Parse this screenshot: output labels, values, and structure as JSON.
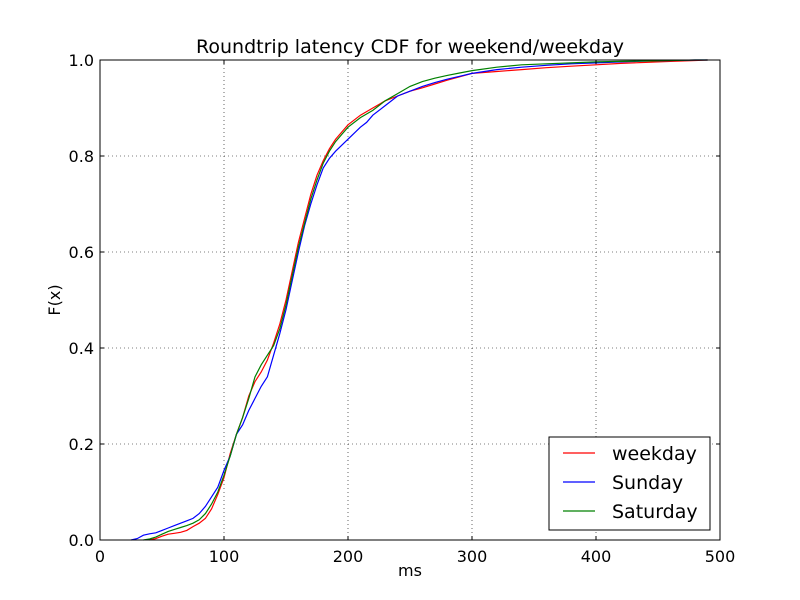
{
  "chart_data": {
    "type": "line",
    "title": "Roundtrip latency CDF for weekend/weekday",
    "xlabel": "ms",
    "ylabel": "F(x)",
    "xlim": [
      0,
      500
    ],
    "ylim": [
      0.0,
      1.0
    ],
    "x_ticks": [
      "0",
      "100",
      "200",
      "300",
      "400",
      "500"
    ],
    "y_ticks": [
      "0.0",
      "0.2",
      "0.4",
      "0.6",
      "0.8",
      "1.0"
    ],
    "grid": true,
    "legend_position": "lower-right",
    "series": [
      {
        "name": "weekday",
        "color": "#ff0000",
        "x": [
          40,
          45,
          50,
          55,
          60,
          65,
          70,
          75,
          80,
          85,
          90,
          95,
          100,
          105,
          110,
          115,
          120,
          125,
          130,
          135,
          140,
          145,
          150,
          155,
          160,
          165,
          170,
          175,
          180,
          185,
          190,
          195,
          200,
          210,
          220,
          230,
          240,
          250,
          260,
          270,
          280,
          290,
          300,
          320,
          340,
          360,
          380,
          400,
          420,
          440,
          460,
          480,
          490
        ],
        "y": [
          0.0,
          0.003,
          0.008,
          0.012,
          0.014,
          0.016,
          0.02,
          0.028,
          0.035,
          0.045,
          0.065,
          0.095,
          0.13,
          0.18,
          0.22,
          0.255,
          0.3,
          0.33,
          0.35,
          0.375,
          0.41,
          0.45,
          0.5,
          0.56,
          0.62,
          0.67,
          0.72,
          0.76,
          0.79,
          0.815,
          0.835,
          0.85,
          0.865,
          0.885,
          0.9,
          0.915,
          0.925,
          0.935,
          0.942,
          0.95,
          0.958,
          0.965,
          0.972,
          0.976,
          0.98,
          0.984,
          0.987,
          0.99,
          0.993,
          0.995,
          0.997,
          0.999,
          1.0
        ]
      },
      {
        "name": "Sunday",
        "color": "#0000ff",
        "x": [
          25,
          30,
          35,
          40,
          45,
          50,
          55,
          60,
          65,
          70,
          75,
          80,
          85,
          90,
          95,
          100,
          105,
          110,
          115,
          120,
          125,
          130,
          135,
          140,
          145,
          150,
          155,
          160,
          165,
          170,
          175,
          180,
          185,
          190,
          200,
          210,
          215,
          220,
          230,
          240,
          250,
          260,
          270,
          280,
          290,
          300,
          320,
          340,
          360,
          380,
          400,
          420,
          440,
          460,
          480,
          490
        ],
        "y": [
          0.0,
          0.003,
          0.01,
          0.013,
          0.015,
          0.02,
          0.025,
          0.03,
          0.035,
          0.04,
          0.045,
          0.055,
          0.07,
          0.09,
          0.11,
          0.145,
          0.175,
          0.22,
          0.24,
          0.27,
          0.295,
          0.32,
          0.34,
          0.385,
          0.43,
          0.48,
          0.54,
          0.6,
          0.655,
          0.7,
          0.74,
          0.775,
          0.795,
          0.81,
          0.835,
          0.86,
          0.87,
          0.885,
          0.905,
          0.925,
          0.935,
          0.945,
          0.953,
          0.96,
          0.966,
          0.972,
          0.98,
          0.985,
          0.989,
          0.992,
          0.994,
          0.996,
          0.998,
          0.999,
          1.0,
          1.0
        ]
      },
      {
        "name": "Saturday",
        "color": "#008000",
        "x": [
          35,
          40,
          45,
          50,
          55,
          60,
          65,
          70,
          75,
          80,
          85,
          90,
          95,
          100,
          105,
          110,
          115,
          120,
          125,
          130,
          135,
          140,
          145,
          150,
          155,
          160,
          165,
          170,
          175,
          180,
          185,
          190,
          195,
          200,
          210,
          220,
          230,
          240,
          250,
          260,
          270,
          280,
          290,
          300,
          320,
          340,
          360,
          380,
          400,
          420,
          440,
          460,
          480,
          490
        ],
        "y": [
          0.0,
          0.002,
          0.006,
          0.012,
          0.018,
          0.022,
          0.026,
          0.03,
          0.035,
          0.042,
          0.055,
          0.075,
          0.1,
          0.135,
          0.175,
          0.22,
          0.255,
          0.295,
          0.34,
          0.365,
          0.385,
          0.405,
          0.44,
          0.49,
          0.55,
          0.61,
          0.66,
          0.71,
          0.75,
          0.785,
          0.81,
          0.83,
          0.845,
          0.86,
          0.88,
          0.895,
          0.915,
          0.93,
          0.945,
          0.955,
          0.962,
          0.968,
          0.973,
          0.978,
          0.985,
          0.99,
          0.992,
          0.994,
          0.996,
          0.997,
          0.998,
          0.999,
          1.0,
          1.0
        ]
      }
    ]
  }
}
